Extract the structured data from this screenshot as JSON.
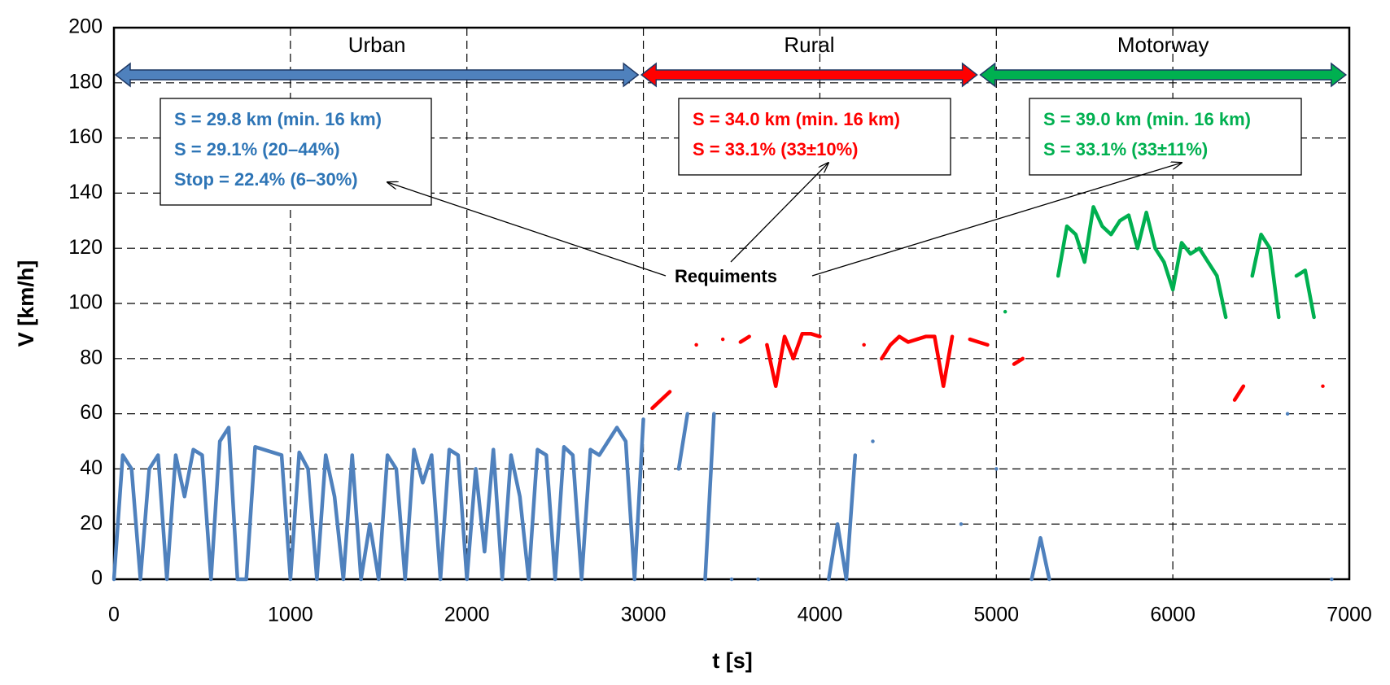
{
  "chart_data": {
    "type": "line",
    "xlabel": "t [s]",
    "ylabel": "V [km/h]",
    "xlim": [
      0,
      7000
    ],
    "xticks": [
      0,
      1000,
      2000,
      3000,
      4000,
      5000,
      6000,
      7000
    ],
    "ylim": [
      0,
      200
    ],
    "yticks": [
      0,
      20,
      40,
      60,
      80,
      100,
      120,
      140,
      160,
      180,
      200
    ],
    "grid": true,
    "x": [
      0,
      50,
      100,
      150,
      200,
      250,
      300,
      350,
      400,
      450,
      500,
      550,
      600,
      650,
      700,
      750,
      800,
      850,
      900,
      950,
      1000,
      1050,
      1100,
      1150,
      1200,
      1250,
      1300,
      1350,
      1400,
      1450,
      1500,
      1550,
      1600,
      1650,
      1700,
      1750,
      1800,
      1850,
      1900,
      1950,
      2000,
      2050,
      2100,
      2150,
      2200,
      2250,
      2300,
      2350,
      2400,
      2450,
      2500,
      2550,
      2600,
      2650,
      2700,
      2750,
      2800,
      2850,
      2900,
      2950,
      3000,
      3050,
      3100,
      3150,
      3200,
      3250,
      3300,
      3350,
      3400,
      3450,
      3500,
      3550,
      3600,
      3650,
      3700,
      3750,
      3800,
      3850,
      3900,
      3950,
      4000,
      4050,
      4100,
      4150,
      4200,
      4250,
      4300,
      4350,
      4400,
      4450,
      4500,
      4550,
      4600,
      4650,
      4700,
      4750,
      4800,
      4850,
      4900,
      4950,
      5000,
      5050,
      5100,
      5150,
      5200,
      5250,
      5300,
      5350,
      5400,
      5450,
      5500,
      5550,
      5600,
      5650,
      5700,
      5750,
      5800,
      5850,
      5900,
      5950,
      6000,
      6050,
      6100,
      6150,
      6200,
      6250,
      6300,
      6350,
      6400,
      6450,
      6500,
      6550,
      6600,
      6650,
      6700,
      6750,
      6800,
      6850,
      6900
    ],
    "series": [
      {
        "color": "#4f81bd",
        "values": [
          0,
          45,
          40,
          0,
          40,
          45,
          0,
          45,
          30,
          47,
          45,
          0,
          50,
          55,
          0,
          0,
          48,
          47,
          46,
          45,
          0,
          46,
          40,
          0,
          45,
          30,
          0,
          45,
          0,
          20,
          0,
          45,
          40,
          0,
          47,
          35,
          45,
          0,
          47,
          45,
          0,
          40,
          10,
          47,
          0,
          45,
          30,
          0,
          47,
          45,
          0,
          48,
          45,
          0,
          47,
          45,
          50,
          55,
          50,
          0,
          58,
          null,
          null,
          null,
          40,
          60,
          null,
          0,
          60,
          null,
          0,
          null,
          null,
          0,
          null,
          null,
          null,
          null,
          null,
          null,
          null,
          0,
          20,
          0,
          45,
          null,
          50,
          null,
          null,
          null,
          null,
          null,
          null,
          null,
          null,
          null,
          20,
          null,
          null,
          null,
          40,
          null,
          null,
          null,
          0,
          15,
          0,
          null,
          null,
          null,
          null,
          null,
          null,
          null,
          null,
          null,
          null,
          null,
          null,
          null,
          null,
          null,
          null,
          null,
          null,
          null,
          null,
          null,
          null,
          null,
          null,
          null,
          null,
          60,
          null,
          null,
          null,
          null,
          0
        ]
      },
      {
        "color": "#ff0000",
        "values": [
          null,
          null,
          null,
          null,
          null,
          null,
          null,
          null,
          null,
          null,
          null,
          null,
          null,
          null,
          null,
          null,
          null,
          null,
          null,
          null,
          null,
          null,
          null,
          null,
          null,
          null,
          null,
          null,
          null,
          null,
          null,
          null,
          null,
          null,
          null,
          null,
          null,
          null,
          null,
          null,
          null,
          null,
          null,
          null,
          null,
          null,
          null,
          null,
          null,
          null,
          null,
          null,
          null,
          null,
          null,
          null,
          null,
          null,
          null,
          null,
          null,
          62,
          65,
          68,
          null,
          null,
          85,
          null,
          null,
          87,
          null,
          86,
          88,
          null,
          85,
          70,
          88,
          80,
          89,
          89,
          88,
          null,
          null,
          null,
          null,
          85,
          null,
          80,
          85,
          88,
          86,
          87,
          88,
          88,
          70,
          88,
          null,
          87,
          86,
          85,
          null,
          null,
          78,
          80,
          null,
          null,
          null,
          null,
          null,
          null,
          null,
          null,
          null,
          null,
          null,
          null,
          null,
          null,
          null,
          null,
          null,
          null,
          null,
          null,
          null,
          null,
          null,
          65,
          70,
          null,
          null,
          null,
          null,
          null,
          null,
          null,
          null,
          70,
          null
        ]
      },
      {
        "color": "#00b050",
        "values": [
          null,
          null,
          null,
          null,
          null,
          null,
          null,
          null,
          null,
          null,
          null,
          null,
          null,
          null,
          null,
          null,
          null,
          null,
          null,
          null,
          null,
          null,
          null,
          null,
          null,
          null,
          null,
          null,
          null,
          null,
          null,
          null,
          null,
          null,
          null,
          null,
          null,
          null,
          null,
          null,
          null,
          null,
          null,
          null,
          null,
          null,
          null,
          null,
          null,
          null,
          null,
          null,
          null,
          null,
          null,
          null,
          null,
          null,
          null,
          null,
          null,
          null,
          null,
          null,
          null,
          null,
          null,
          null,
          null,
          null,
          null,
          null,
          null,
          null,
          null,
          null,
          null,
          null,
          null,
          null,
          null,
          null,
          null,
          null,
          null,
          null,
          null,
          null,
          null,
          null,
          null,
          null,
          null,
          null,
          null,
          null,
          null,
          null,
          null,
          null,
          null,
          97,
          null,
          null,
          null,
          null,
          null,
          110,
          128,
          125,
          115,
          135,
          128,
          125,
          130,
          132,
          120,
          133,
          120,
          115,
          105,
          122,
          118,
          120,
          115,
          110,
          95,
          null,
          null,
          110,
          125,
          120,
          95,
          null,
          110,
          112,
          95,
          null,
          null
        ]
      }
    ],
    "regions": [
      {
        "label": "Urban",
        "start": 0,
        "end": 2980,
        "color": "#4f81bd"
      },
      {
        "label": "Rural",
        "start": 2980,
        "end": 4900,
        "color": "#ff0000"
      },
      {
        "label": "Motorway",
        "start": 4900,
        "end": 6990,
        "color": "#00b050"
      }
    ],
    "annotations": [
      {
        "color": "#2e75b6",
        "lines": [
          "S = 29.8 km (min. 16 km)",
          "S = 29.1% (20–44%)",
          "Stop = 22.4% (6–30%)"
        ]
      },
      {
        "color": "#ff0000",
        "lines": [
          "S = 34.0 km (min. 16 km)",
          "S = 33.1% (33±10%)"
        ]
      },
      {
        "color": "#00b050",
        "lines": [
          "S = 39.0 km (min. 16 km)",
          "S = 33.1% (33±11%)"
        ]
      }
    ],
    "callout": "Requiments"
  }
}
